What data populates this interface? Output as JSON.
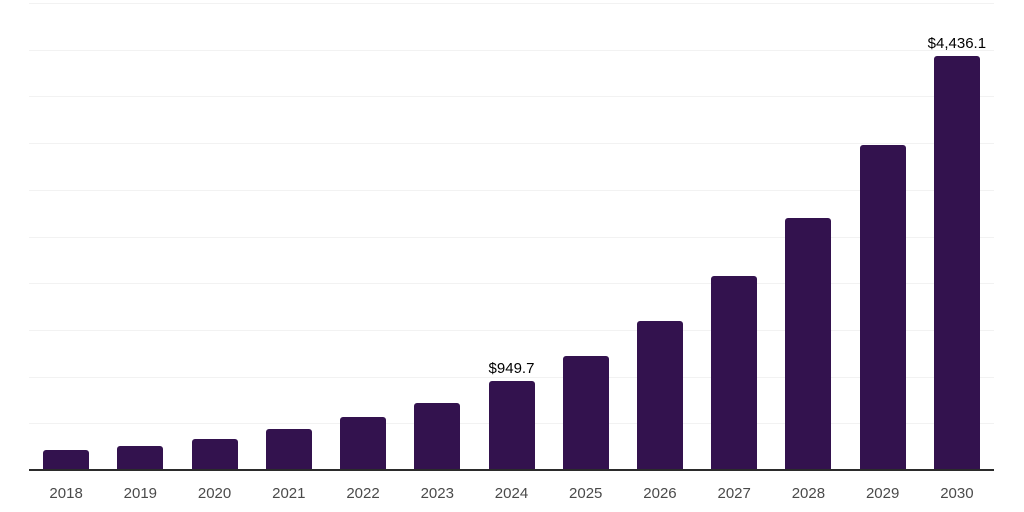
{
  "chart_data": {
    "type": "bar",
    "title": "",
    "xlabel": "",
    "ylabel": "",
    "categories": [
      "2018",
      "2019",
      "2020",
      "2021",
      "2022",
      "2023",
      "2024",
      "2025",
      "2026",
      "2027",
      "2028",
      "2029",
      "2030"
    ],
    "values": [
      210,
      255,
      330,
      437,
      568,
      716,
      949.7,
      1221,
      1596,
      2082,
      2697,
      3480,
      4436.1
    ],
    "value_labels": [
      {
        "category": "2024",
        "text": "$949.7"
      },
      {
        "category": "2030",
        "text": "$4,436.1"
      }
    ],
    "ylim": [
      0,
      5000
    ],
    "gridline_step": 500,
    "grid": "horizontal-only",
    "legend_position": "none",
    "y_axis_tick_labels_visible": false,
    "colors": {
      "bar": "#33124E",
      "axis_line": "#2B2B2B",
      "gridline": "#F2F2F2",
      "tick_label": "#4A4A4A",
      "value_label": "#000000",
      "background": "#FFFFFF"
    }
  }
}
